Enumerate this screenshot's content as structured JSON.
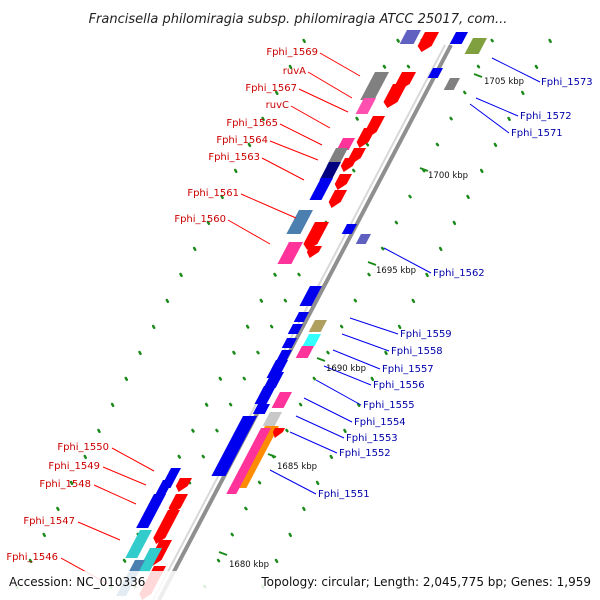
{
  "title": "Francisella philomiragia subsp. philomiragia ATCC 25017, com...",
  "accession": "Accession: NC_010336",
  "summary": "Topology: circular; Length: 2,045,775 bp; Genes: 1,959",
  "scale_marks": [
    "1705 kbp",
    "1700 kbp",
    "1695 kbp",
    "1690 kbp",
    "1685 kbp",
    "1680 kbp"
  ],
  "left_genes": [
    "Fphi_1569",
    "ruvA",
    "Fphi_1567",
    "ruvC",
    "Fphi_1565",
    "Fphi_1564",
    "Fphi_1563",
    "Fphi_1561",
    "Fphi_1560",
    "Fphi_1550",
    "Fphi_1549",
    "Fphi_1548",
    "Fphi_1547",
    "Fphi_1546"
  ],
  "right_genes": [
    "Fphi_1573",
    "Fphi_1572",
    "Fphi_1571",
    "Fphi_1562",
    "Fphi_1559",
    "Fphi_1558",
    "Fphi_1557",
    "Fphi_1556",
    "Fphi_1555",
    "Fphi_1554",
    "Fphi_1553",
    "Fphi_1552",
    "Fphi_1551"
  ],
  "colors": {
    "forward": "#ff0000",
    "reverse": "#0000ee",
    "left_label": "#cc0000",
    "right_label": "#0000aa",
    "backbone": "#999999",
    "tick": "#1a8a1a"
  }
}
